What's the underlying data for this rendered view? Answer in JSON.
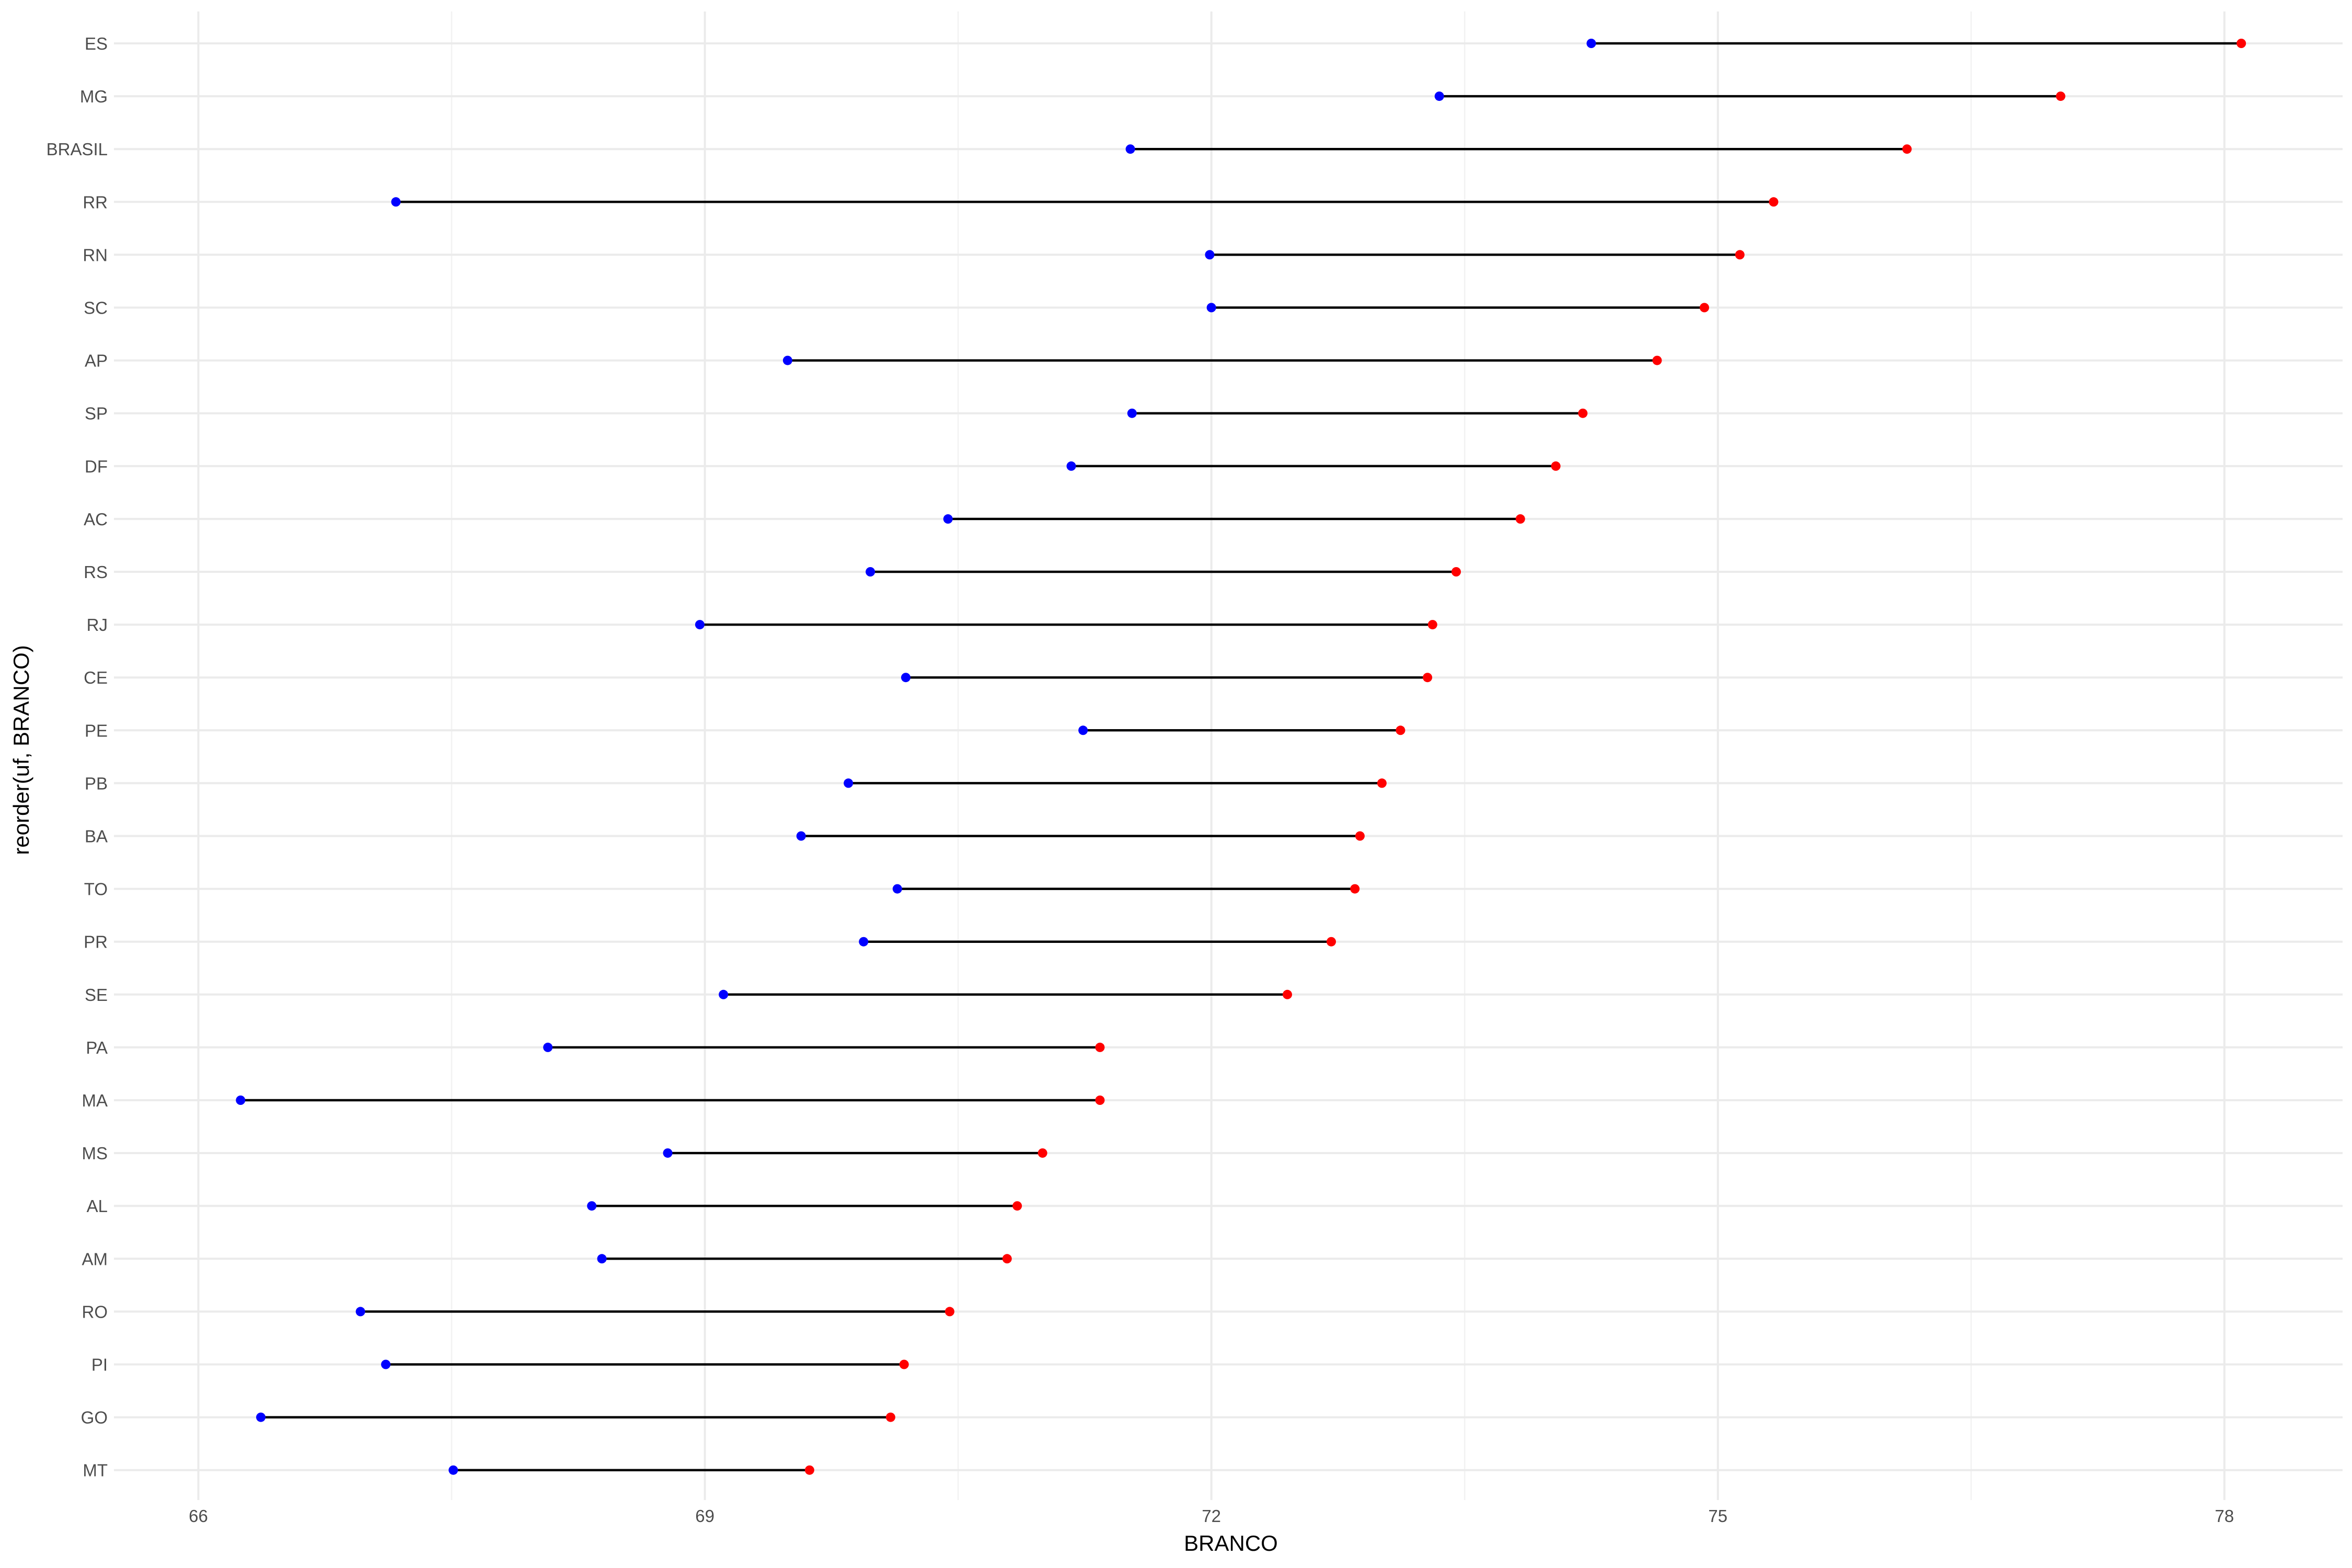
{
  "chart_data": {
    "type": "dumbbell",
    "xlabel": "BRANCO",
    "ylabel": "reorder(uf, BRANCO)",
    "xlim": [
      65.5,
      78.7
    ],
    "x_ticks": [
      66,
      69,
      72,
      75,
      78
    ],
    "x_tick_labels": [
      "66",
      "69",
      "72",
      "75",
      "78"
    ],
    "grid": true,
    "colors": {
      "start": "#0000ff",
      "end": "#ff0000",
      "segment": "#000000"
    },
    "categories": [
      "ES",
      "MG",
      "BRASIL",
      "RR",
      "RN",
      "SC",
      "AP",
      "SP",
      "DF",
      "AC",
      "RS",
      "RJ",
      "CE",
      "PE",
      "PB",
      "BA",
      "TO",
      "PR",
      "SE",
      "PA",
      "MA",
      "MS",
      "AL",
      "AM",
      "RO",
      "PI",
      "GO",
      "MT"
    ],
    "start_values": [
      74.25,
      73.35,
      71.52,
      67.17,
      71.99,
      72.0,
      69.49,
      71.53,
      71.17,
      70.44,
      69.98,
      68.97,
      70.19,
      71.24,
      69.85,
      69.57,
      70.14,
      69.94,
      69.11,
      68.07,
      66.25,
      68.78,
      68.33,
      68.39,
      66.96,
      67.11,
      66.37,
      67.51
    ],
    "end_values": [
      78.1,
      77.03,
      76.12,
      75.33,
      75.13,
      74.92,
      74.64,
      74.2,
      74.04,
      73.83,
      73.45,
      73.31,
      73.28,
      73.12,
      73.01,
      72.88,
      72.85,
      72.71,
      72.45,
      71.34,
      71.34,
      71.0,
      70.85,
      70.79,
      70.45,
      70.18,
      70.1,
      69.62
    ]
  }
}
